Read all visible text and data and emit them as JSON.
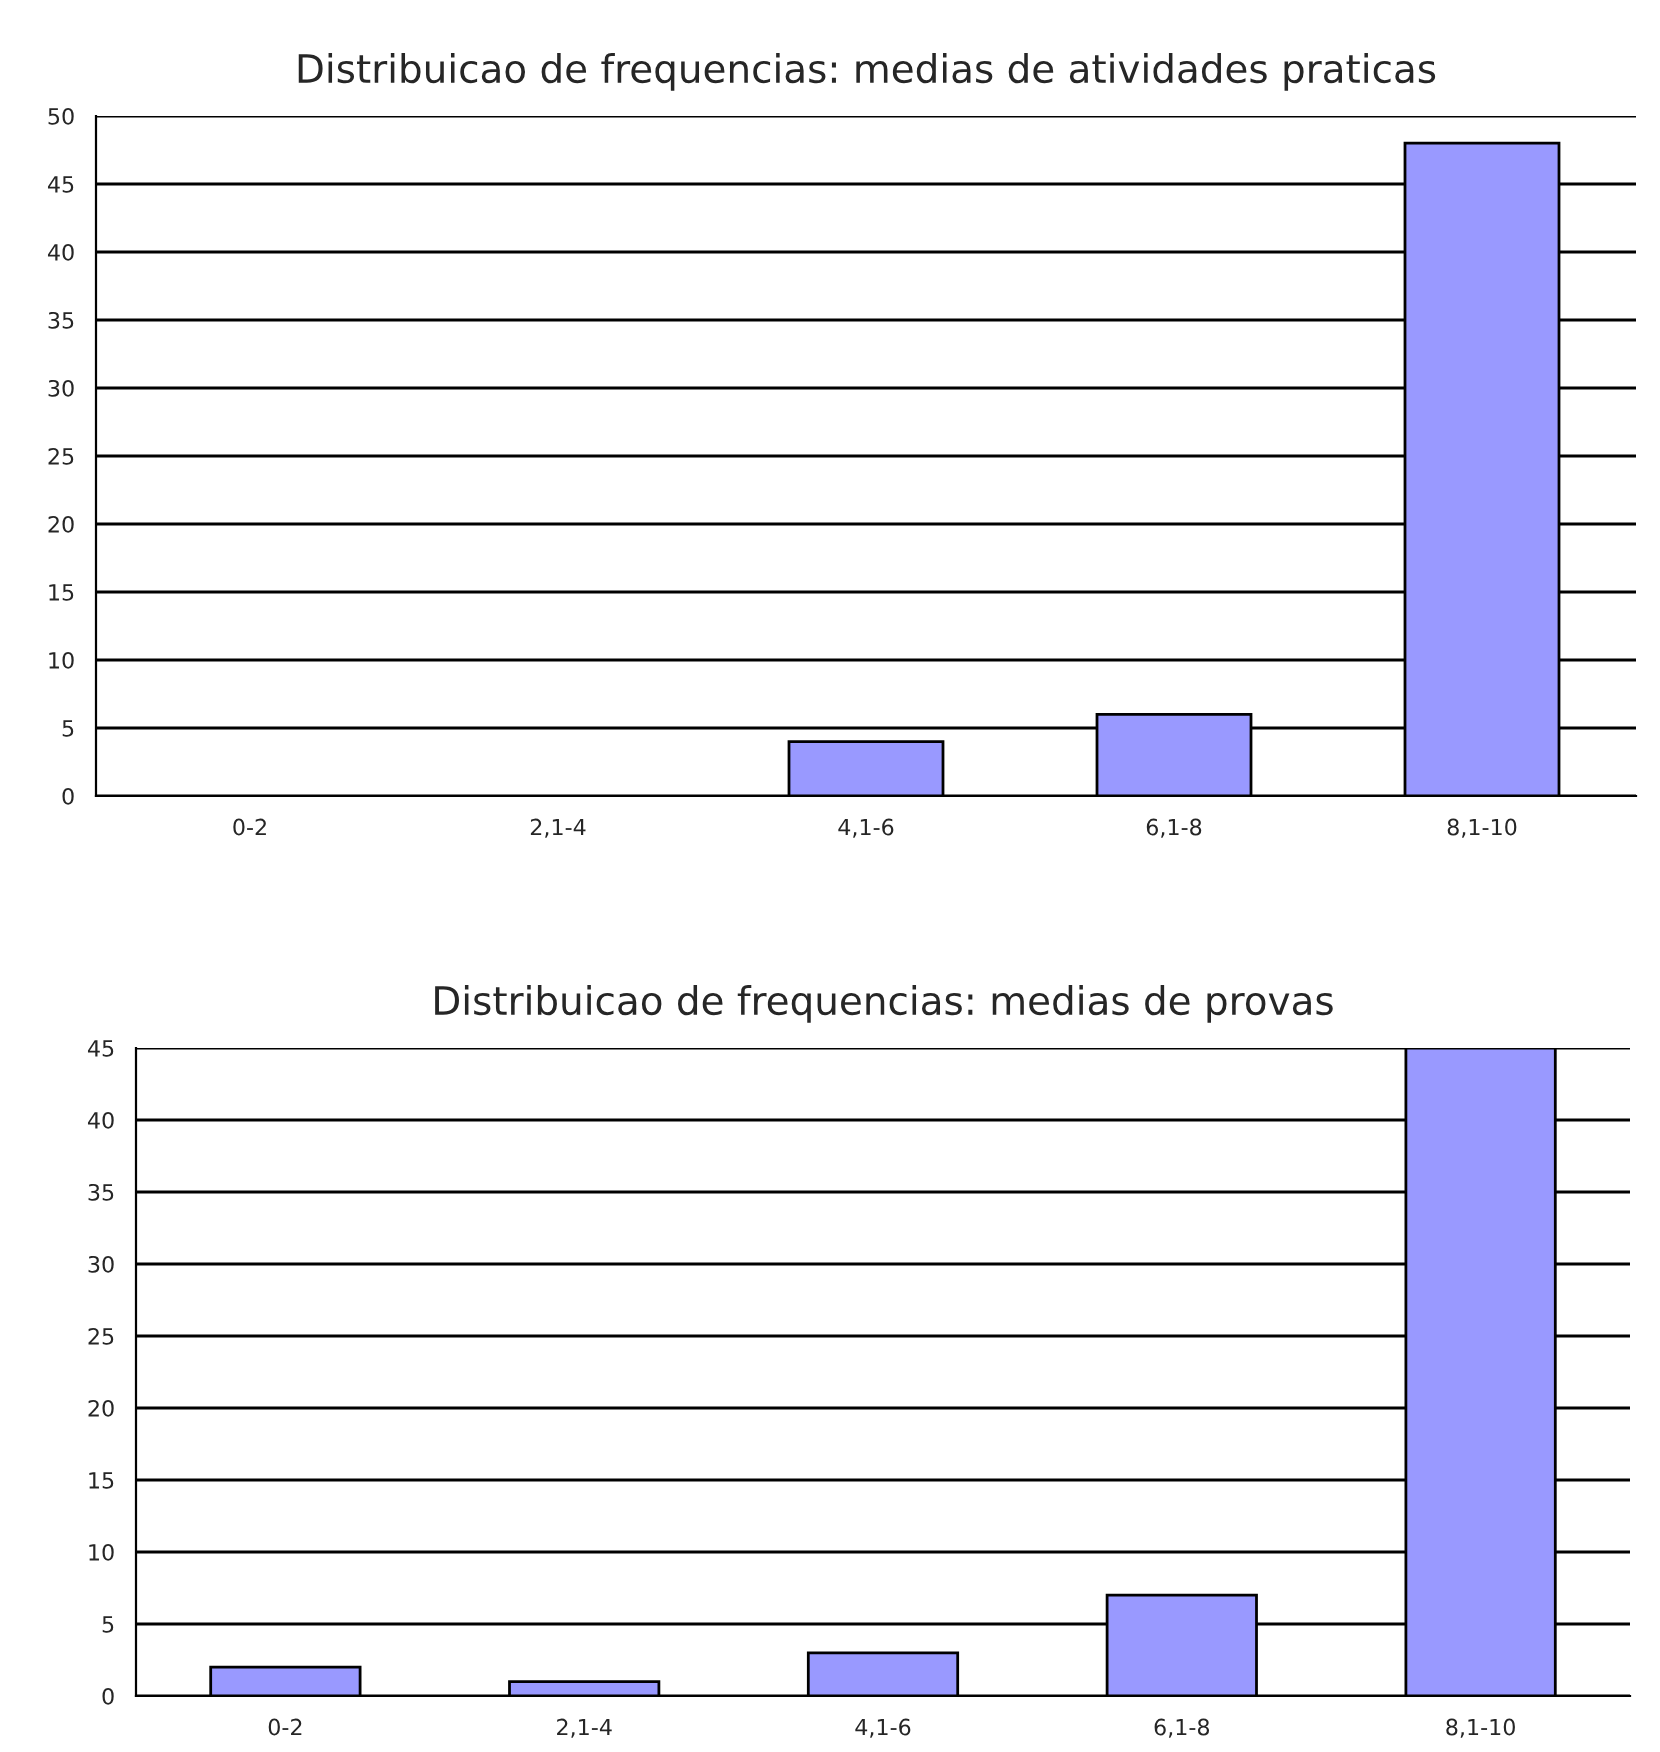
{
  "chart_data": [
    {
      "type": "bar",
      "title": "Distribuicao de frequencias: medias de atividades praticas",
      "categories": [
        "0-2",
        "2,1-4",
        "4,1-6",
        "6,1-8",
        "8,1-10"
      ],
      "series": [
        {
          "color": "#9999ff",
          "values": [
            0,
            0,
            4,
            6,
            48
          ]
        }
      ],
      "ylim": [
        0,
        50
      ],
      "yticks": [
        0,
        5,
        10,
        15,
        20,
        25,
        30,
        35,
        40,
        45,
        50
      ],
      "grid": "y",
      "legend": false
    },
    {
      "type": "bar",
      "title": "Distribuicao de frequencias: medias de provas",
      "categories": [
        "0-2",
        "2,1-4",
        "4,1-6",
        "6,1-8",
        "8,1-10"
      ],
      "series": [
        {
          "color": "#9999ff",
          "values": [
            2,
            1,
            3,
            7,
            45
          ]
        }
      ],
      "ylim": [
        0,
        45
      ],
      "yticks": [
        0,
        5,
        10,
        15,
        20,
        25,
        30,
        35,
        40,
        45
      ],
      "grid": "y",
      "legend": false
    }
  ]
}
